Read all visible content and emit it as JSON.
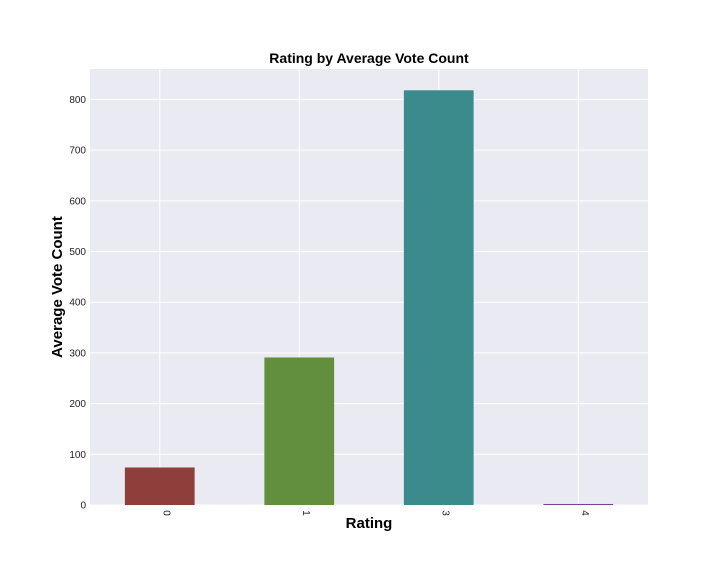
{
  "chart_data": {
    "type": "bar",
    "title": "Rating by Average Vote Count",
    "xlabel": "Rating",
    "ylabel": "Average Vote Count",
    "categories": [
      "0",
      "1",
      "3",
      "4"
    ],
    "values": [
      74,
      291,
      818,
      2
    ],
    "bar_colors": [
      "#8e3f3b",
      "#628f3d",
      "#3b8a8c",
      "#7a3f9a"
    ],
    "ylim": [
      0,
      860
    ],
    "yticks": [
      0,
      100,
      200,
      300,
      400,
      500,
      600,
      700,
      800
    ],
    "grid": true,
    "background": "#eaeaf2",
    "grid_color": "#ffffff",
    "x_tick_rotation": 90
  }
}
